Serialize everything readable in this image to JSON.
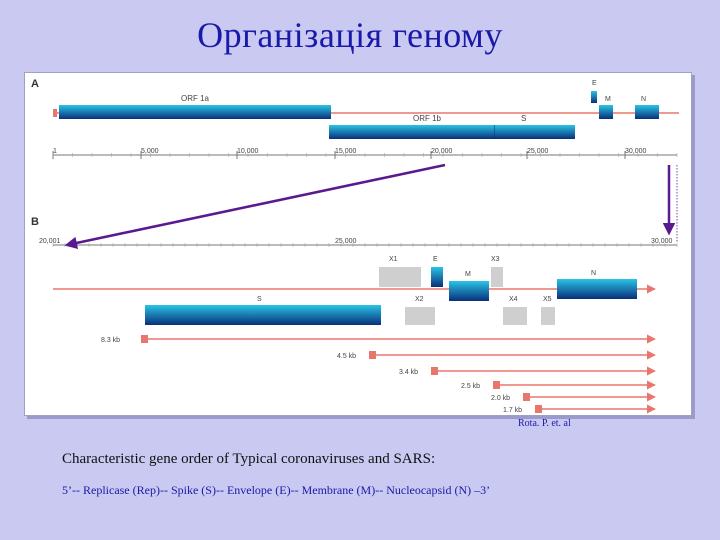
{
  "title": "Організація геному",
  "panel_a": {
    "label": "A",
    "genes": {
      "orf1a": "ORF 1a",
      "orf1b": "ORF 1b",
      "s": "S",
      "e": "E",
      "m": "M",
      "n": "N"
    },
    "axis_ticks": [
      "1",
      "5,000",
      "10,000",
      "15,000",
      "20,000",
      "25,000",
      "30,000"
    ]
  },
  "panel_b": {
    "label": "B",
    "axis_ticks": [
      "20,001",
      "25,000",
      "30,000"
    ],
    "genes": {
      "x1": "X1",
      "e": "E",
      "x3": "X3",
      "m": "M",
      "n": "N",
      "s": "S",
      "x2": "X2",
      "x4": "X4",
      "x5": "X5"
    },
    "transcripts": [
      "8.3 kb",
      "4.5 kb",
      "3.4 kb",
      "2.5 kb",
      "2.0 kb",
      "1.7 kb"
    ]
  },
  "citation": "Rota. P. et. al",
  "caption_line1": "Characteristic gene order of Typical coronaviruses and SARS:",
  "caption_line2": "5’-- Replicase (Rep)-- Spike (S)-- Envelope (E)-- Membrane (M)-- Nucleocapsid (N) –3’",
  "colors": {
    "background": "#c9c9f2",
    "title": "#1a1aa8",
    "gene_bar_dark": "#0a2f7a",
    "gene_bar_light": "#29c4e6",
    "genome_line": "#e8766d",
    "grey_box": "#cfcfcf",
    "pointer_arrow": "#5a1a8f"
  }
}
